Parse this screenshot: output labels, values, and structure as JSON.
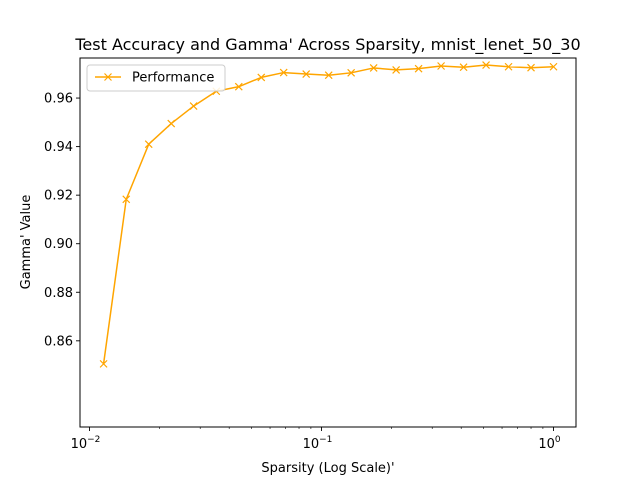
{
  "chart_data": {
    "type": "line",
    "title": "Test Accuracy and Gamma' Across Sparsity, mnist_lenet_50_30",
    "xlabel": "Sparsity (Log Scale)'",
    "ylabel": "Gamma' Value",
    "xscale": "log",
    "xlim": [
      0.0091,
      1.25
    ],
    "ylim": [
      0.8245,
      0.9765
    ],
    "xticks": [
      {
        "value": 0.01,
        "base": "10",
        "exp": "−2"
      },
      {
        "value": 0.1,
        "base": "10",
        "exp": "−1"
      },
      {
        "value": 1,
        "base": "10",
        "exp": "0"
      }
    ],
    "yticks": [
      {
        "value": 0.86,
        "label": "0.86"
      },
      {
        "value": 0.88,
        "label": "0.88"
      },
      {
        "value": 0.9,
        "label": "0.90"
      },
      {
        "value": 0.92,
        "label": "0.92"
      },
      {
        "value": 0.94,
        "label": "0.94"
      },
      {
        "value": 0.96,
        "label": "0.96"
      }
    ],
    "grid": false,
    "legend": "top-left",
    "series": [
      {
        "name": "Performance",
        "color": "#ffa500",
        "marker": "x",
        "x": [
          0.0115,
          0.0144,
          0.018,
          0.0225,
          0.0281,
          0.0352,
          0.044,
          0.055,
          0.0687,
          0.0859,
          0.1074,
          0.1342,
          0.1678,
          0.2097,
          0.2621,
          0.3277,
          0.4096,
          0.512,
          0.64,
          0.8,
          1.0
        ],
        "y": [
          0.8505,
          0.9183,
          0.941,
          0.9495,
          0.9567,
          0.9628,
          0.9647,
          0.9685,
          0.9705,
          0.9699,
          0.9694,
          0.9704,
          0.9724,
          0.9716,
          0.9721,
          0.9732,
          0.9727,
          0.9736,
          0.9729,
          0.9725,
          0.9729
        ]
      }
    ]
  }
}
